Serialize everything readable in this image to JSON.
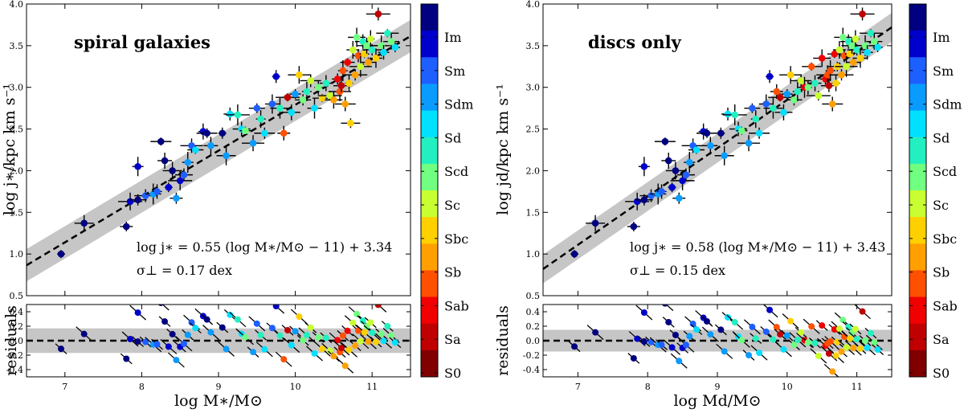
{
  "chart_data": [
    {
      "type": "scatter",
      "panel": "left",
      "title": "spiral galaxies",
      "xlabel": "log  M∗/M⊙",
      "ylabel": "log  j∗/kpc km s⁻¹",
      "residual_label": "residuals",
      "xlim": [
        6.5,
        11.5
      ],
      "ylim": [
        0.5,
        4.0
      ],
      "residual_ylim": [
        -0.5,
        0.5
      ],
      "x_ticks": [
        "7",
        "8",
        "9",
        "10",
        "11"
      ],
      "y_ticks": [
        "0.5",
        "1.0",
        "1.5",
        "2.0",
        "2.5",
        "3.0",
        "3.5",
        "4.0"
      ],
      "residual_ticks": [
        "0.4",
        "0.2",
        "0.0",
        "-0.2",
        "-0.4"
      ],
      "fit": {
        "slope": 0.55,
        "pivot": 11,
        "intercept": 3.34,
        "scatter": 0.17
      },
      "fit_label": "log j∗ = 0.55 (log M∗/M⊙ − 11) + 3.34",
      "scatter_label": "σ⊥ = 0.17 dex",
      "points": [
        {
          "x": 6.95,
          "y": 1.0,
          "t": 0
        },
        {
          "x": 7.25,
          "y": 1.37,
          "t": 0
        },
        {
          "x": 7.8,
          "y": 1.33,
          "t": 0
        },
        {
          "x": 7.85,
          "y": 1.63,
          "t": 1
        },
        {
          "x": 7.95,
          "y": 1.65,
          "t": 0
        },
        {
          "x": 7.95,
          "y": 2.05,
          "t": 1
        },
        {
          "x": 8.05,
          "y": 1.7,
          "t": 2
        },
        {
          "x": 8.15,
          "y": 1.72,
          "t": 3
        },
        {
          "x": 8.2,
          "y": 1.75,
          "t": 2
        },
        {
          "x": 8.25,
          "y": 2.35,
          "t": 0
        },
        {
          "x": 8.3,
          "y": 2.12,
          "t": 0
        },
        {
          "x": 8.35,
          "y": 1.8,
          "t": 1
        },
        {
          "x": 8.4,
          "y": 2.0,
          "t": 0
        },
        {
          "x": 8.45,
          "y": 1.67,
          "t": 3
        },
        {
          "x": 8.5,
          "y": 1.88,
          "t": 1
        },
        {
          "x": 8.55,
          "y": 1.95,
          "t": 2
        },
        {
          "x": 8.6,
          "y": 2.1,
          "t": 3
        },
        {
          "x": 8.65,
          "y": 2.3,
          "t": 2
        },
        {
          "x": 8.7,
          "y": 2.25,
          "t": 4
        },
        {
          "x": 8.8,
          "y": 2.47,
          "t": 1
        },
        {
          "x": 8.85,
          "y": 2.45,
          "t": 0
        },
        {
          "x": 8.9,
          "y": 2.3,
          "t": 3
        },
        {
          "x": 9.05,
          "y": 2.45,
          "t": 0
        },
        {
          "x": 9.1,
          "y": 2.18,
          "t": 3
        },
        {
          "x": 9.15,
          "y": 2.68,
          "t": 4
        },
        {
          "x": 9.25,
          "y": 2.67,
          "t": 5
        },
        {
          "x": 9.3,
          "y": 2.5,
          "t": 4
        },
        {
          "x": 9.35,
          "y": 2.48,
          "t": 6
        },
        {
          "x": 9.45,
          "y": 2.33,
          "t": 3
        },
        {
          "x": 9.5,
          "y": 2.75,
          "t": 2
        },
        {
          "x": 9.55,
          "y": 2.62,
          "t": 5
        },
        {
          "x": 9.6,
          "y": 2.45,
          "t": 4
        },
        {
          "x": 9.7,
          "y": 2.8,
          "t": 2
        },
        {
          "x": 9.75,
          "y": 3.13,
          "t": 1
        },
        {
          "x": 9.8,
          "y": 2.75,
          "t": 5
        },
        {
          "x": 9.85,
          "y": 2.45,
          "t": 10
        },
        {
          "x": 9.9,
          "y": 2.88,
          "t": 12
        },
        {
          "x": 9.95,
          "y": 2.7,
          "t": 4
        },
        {
          "x": 10.0,
          "y": 2.92,
          "t": 3
        },
        {
          "x": 10.05,
          "y": 3.15,
          "t": 8
        },
        {
          "x": 10.1,
          "y": 2.85,
          "t": 6
        },
        {
          "x": 10.15,
          "y": 2.95,
          "t": 5
        },
        {
          "x": 10.2,
          "y": 3.08,
          "t": 7
        },
        {
          "x": 10.25,
          "y": 2.75,
          "t": 4
        },
        {
          "x": 10.3,
          "y": 3.0,
          "t": 6
        },
        {
          "x": 10.35,
          "y": 2.87,
          "t": 8
        },
        {
          "x": 10.4,
          "y": 3.05,
          "t": 5
        },
        {
          "x": 10.45,
          "y": 2.9,
          "t": 7
        },
        {
          "x": 10.5,
          "y": 2.85,
          "t": 9
        },
        {
          "x": 10.55,
          "y": 3.1,
          "t": 11
        },
        {
          "x": 10.58,
          "y": 2.95,
          "t": 10
        },
        {
          "x": 10.6,
          "y": 3.02,
          "t": 12
        },
        {
          "x": 10.62,
          "y": 3.2,
          "t": 10
        },
        {
          "x": 10.65,
          "y": 2.8,
          "t": 9
        },
        {
          "x": 10.68,
          "y": 3.3,
          "t": 11
        },
        {
          "x": 10.7,
          "y": 3.05,
          "t": 8
        },
        {
          "x": 10.72,
          "y": 2.57,
          "t": 8
        },
        {
          "x": 10.75,
          "y": 3.45,
          "t": 7
        },
        {
          "x": 10.78,
          "y": 3.15,
          "t": 9
        },
        {
          "x": 10.8,
          "y": 3.6,
          "t": 6
        },
        {
          "x": 10.82,
          "y": 3.38,
          "t": 10
        },
        {
          "x": 10.85,
          "y": 3.25,
          "t": 7
        },
        {
          "x": 10.88,
          "y": 3.55,
          "t": 5
        },
        {
          "x": 10.9,
          "y": 3.4,
          "t": 8
        },
        {
          "x": 10.93,
          "y": 3.5,
          "t": 6
        },
        {
          "x": 10.95,
          "y": 3.3,
          "t": 9
        },
        {
          "x": 10.98,
          "y": 3.58,
          "t": 7
        },
        {
          "x": 11.0,
          "y": 3.45,
          "t": 5
        },
        {
          "x": 11.05,
          "y": 3.35,
          "t": 8
        },
        {
          "x": 11.08,
          "y": 3.88,
          "t": 12
        },
        {
          "x": 11.12,
          "y": 3.5,
          "t": 6
        },
        {
          "x": 11.15,
          "y": 3.42,
          "t": 4
        },
        {
          "x": 11.2,
          "y": 3.65,
          "t": 5
        },
        {
          "x": 11.25,
          "y": 3.55,
          "t": 6
        },
        {
          "x": 11.3,
          "y": 3.48,
          "t": 4
        }
      ]
    },
    {
      "type": "scatter",
      "panel": "right",
      "title": "discs only",
      "xlabel": "log  Md/M⊙",
      "ylabel": "log  jd/kpc km s⁻¹",
      "residual_label": "residuals",
      "xlim": [
        6.5,
        11.5
      ],
      "ylim": [
        0.5,
        4.0
      ],
      "residual_ylim": [
        -0.5,
        0.5
      ],
      "x_ticks": [
        "7",
        "8",
        "9",
        "10",
        "11"
      ],
      "y_ticks": [
        "0.5",
        "1.0",
        "1.5",
        "2.0",
        "2.5",
        "3.0",
        "3.5",
        "4.0"
      ],
      "residual_ticks": [
        "0.4",
        "0.2",
        "0.0",
        "-0.2",
        "-0.4"
      ],
      "fit": {
        "slope": 0.58,
        "pivot": 11,
        "intercept": 3.43,
        "scatter": 0.15
      },
      "fit_label": "log j∗ = 0.58 (log M∗/M⊙ − 11) + 3.43",
      "scatter_label": "σ⊥ = 0.15 dex",
      "points": [
        {
          "x": 6.95,
          "y": 1.0,
          "t": 0
        },
        {
          "x": 7.25,
          "y": 1.37,
          "t": 0
        },
        {
          "x": 7.8,
          "y": 1.33,
          "t": 0
        },
        {
          "x": 7.85,
          "y": 1.63,
          "t": 1
        },
        {
          "x": 7.95,
          "y": 1.65,
          "t": 0
        },
        {
          "x": 7.95,
          "y": 2.05,
          "t": 1
        },
        {
          "x": 8.05,
          "y": 1.7,
          "t": 2
        },
        {
          "x": 8.15,
          "y": 1.72,
          "t": 3
        },
        {
          "x": 8.2,
          "y": 1.75,
          "t": 2
        },
        {
          "x": 8.25,
          "y": 2.35,
          "t": 0
        },
        {
          "x": 8.3,
          "y": 2.12,
          "t": 0
        },
        {
          "x": 8.35,
          "y": 1.8,
          "t": 1
        },
        {
          "x": 8.4,
          "y": 2.0,
          "t": 0
        },
        {
          "x": 8.45,
          "y": 1.67,
          "t": 3
        },
        {
          "x": 8.5,
          "y": 1.88,
          "t": 1
        },
        {
          "x": 8.55,
          "y": 1.95,
          "t": 2
        },
        {
          "x": 8.6,
          "y": 2.1,
          "t": 3
        },
        {
          "x": 8.65,
          "y": 2.3,
          "t": 2
        },
        {
          "x": 8.7,
          "y": 2.25,
          "t": 4
        },
        {
          "x": 8.8,
          "y": 2.47,
          "t": 1
        },
        {
          "x": 8.85,
          "y": 2.45,
          "t": 0
        },
        {
          "x": 8.9,
          "y": 2.3,
          "t": 3
        },
        {
          "x": 9.05,
          "y": 2.45,
          "t": 0
        },
        {
          "x": 9.1,
          "y": 2.18,
          "t": 3
        },
        {
          "x": 9.15,
          "y": 2.68,
          "t": 4
        },
        {
          "x": 9.25,
          "y": 2.67,
          "t": 5
        },
        {
          "x": 9.3,
          "y": 2.5,
          "t": 4
        },
        {
          "x": 9.35,
          "y": 2.48,
          "t": 6
        },
        {
          "x": 9.45,
          "y": 2.33,
          "t": 3
        },
        {
          "x": 9.5,
          "y": 2.75,
          "t": 2
        },
        {
          "x": 9.55,
          "y": 2.62,
          "t": 5
        },
        {
          "x": 9.6,
          "y": 2.45,
          "t": 4
        },
        {
          "x": 9.7,
          "y": 2.8,
          "t": 2
        },
        {
          "x": 9.75,
          "y": 3.13,
          "t": 1
        },
        {
          "x": 9.8,
          "y": 2.75,
          "t": 5
        },
        {
          "x": 9.85,
          "y": 2.95,
          "t": 10
        },
        {
          "x": 9.9,
          "y": 2.88,
          "t": 12
        },
        {
          "x": 9.95,
          "y": 2.7,
          "t": 4
        },
        {
          "x": 10.0,
          "y": 2.92,
          "t": 3
        },
        {
          "x": 10.05,
          "y": 3.15,
          "t": 8
        },
        {
          "x": 10.1,
          "y": 2.85,
          "t": 6
        },
        {
          "x": 10.15,
          "y": 2.95,
          "t": 5
        },
        {
          "x": 10.2,
          "y": 3.08,
          "t": 7
        },
        {
          "x": 10.25,
          "y": 3.0,
          "t": 11
        },
        {
          "x": 10.3,
          "y": 3.0,
          "t": 6
        },
        {
          "x": 10.35,
          "y": 3.25,
          "t": 10
        },
        {
          "x": 10.4,
          "y": 3.05,
          "t": 5
        },
        {
          "x": 10.45,
          "y": 2.9,
          "t": 7
        },
        {
          "x": 10.5,
          "y": 3.35,
          "t": 11
        },
        {
          "x": 10.55,
          "y": 3.1,
          "t": 11
        },
        {
          "x": 10.58,
          "y": 3.15,
          "t": 10
        },
        {
          "x": 10.6,
          "y": 3.02,
          "t": 12
        },
        {
          "x": 10.62,
          "y": 3.2,
          "t": 10
        },
        {
          "x": 10.65,
          "y": 2.8,
          "t": 9
        },
        {
          "x": 10.68,
          "y": 3.4,
          "t": 11
        },
        {
          "x": 10.7,
          "y": 3.05,
          "t": 8
        },
        {
          "x": 10.72,
          "y": 3.25,
          "t": 8
        },
        {
          "x": 10.75,
          "y": 3.45,
          "t": 7
        },
        {
          "x": 10.78,
          "y": 3.15,
          "t": 9
        },
        {
          "x": 10.8,
          "y": 3.6,
          "t": 6
        },
        {
          "x": 10.82,
          "y": 3.38,
          "t": 10
        },
        {
          "x": 10.85,
          "y": 3.25,
          "t": 7
        },
        {
          "x": 10.88,
          "y": 3.55,
          "t": 5
        },
        {
          "x": 10.9,
          "y": 3.4,
          "t": 8
        },
        {
          "x": 10.93,
          "y": 3.5,
          "t": 6
        },
        {
          "x": 10.95,
          "y": 3.3,
          "t": 9
        },
        {
          "x": 10.98,
          "y": 3.58,
          "t": 7
        },
        {
          "x": 11.0,
          "y": 3.45,
          "t": 5
        },
        {
          "x": 11.05,
          "y": 3.35,
          "t": 8
        },
        {
          "x": 11.08,
          "y": 3.88,
          "t": 12
        },
        {
          "x": 11.12,
          "y": 3.5,
          "t": 6
        },
        {
          "x": 11.15,
          "y": 3.42,
          "t": 4
        },
        {
          "x": 11.2,
          "y": 3.65,
          "t": 5
        },
        {
          "x": 11.25,
          "y": 3.55,
          "t": 6
        },
        {
          "x": 11.3,
          "y": 3.48,
          "t": 4
        }
      ]
    }
  ],
  "colorbar": {
    "labels": [
      "Im",
      "Sm",
      "Sdm",
      "Sd",
      "Scd",
      "Sc",
      "Sbc",
      "Sb",
      "Sab",
      "Sa",
      "S0"
    ],
    "colors": [
      "#000080",
      "#0000cd",
      "#1e5fff",
      "#0a9bff",
      "#00e0ff",
      "#22f0c0",
      "#70ff80",
      "#c8ff30",
      "#ffd000",
      "#ffa000",
      "#ff5000",
      "#f00000",
      "#c00000",
      "#800000"
    ]
  },
  "colors": {
    "band": "#c6c6c6",
    "errorbar": "#000000",
    "fit_line": "#000000"
  }
}
